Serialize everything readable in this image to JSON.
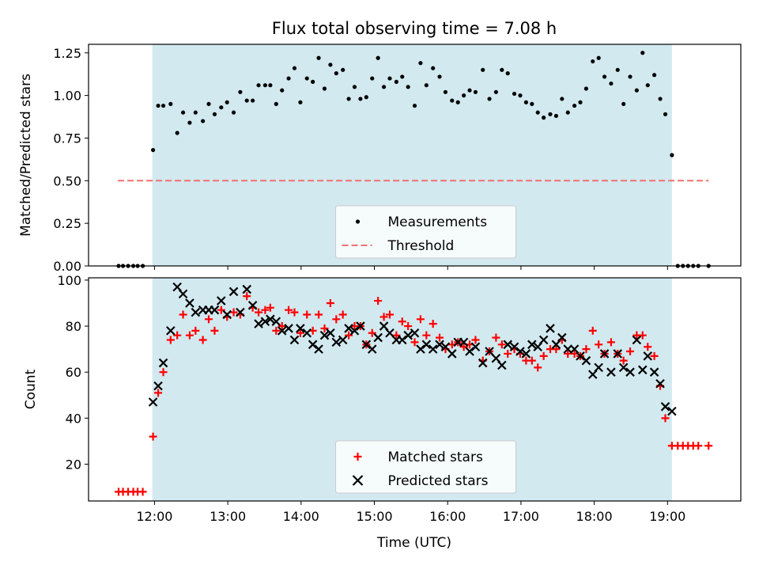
{
  "chart_data": {
    "title": "Flux total observing time = 7.08 h",
    "xlabel": "Time (UTC)",
    "x_ticks": [
      "12:00",
      "13:00",
      "14:00",
      "15:00",
      "16:00",
      "17:00",
      "18:00",
      "19:00"
    ],
    "x_ticks_hours": [
      12,
      13,
      14,
      15,
      16,
      17,
      18,
      19
    ],
    "xlim_hours": [
      11.1,
      20.0
    ],
    "observing_window_hours": [
      11.97,
      19.06
    ],
    "colors": {
      "window": "#d2e9f0",
      "threshold": "#f07070",
      "matched": "#ff0000",
      "predicted": "#000000",
      "measurement": "#000000"
    },
    "charts": [
      {
        "type": "scatter",
        "ylabel": "Matched/Predicted stars",
        "ylim": [
          0,
          1.3
        ],
        "y_ticks": [
          "0.00",
          "0.25",
          "0.50",
          "0.75",
          "1.00",
          "1.25"
        ],
        "y_tick_values": [
          0,
          0.25,
          0.5,
          0.75,
          1.0,
          1.25
        ],
        "legend_position": "bottom-center",
        "threshold": 0.5,
        "threshold_x_range_hours": [
          11.5,
          19.56
        ],
        "series": [
          {
            "name": "Measurements",
            "marker": "dot",
            "x": [
              11.51,
              11.57,
              11.64,
              11.71,
              11.77,
              11.84,
              11.98,
              12.05,
              12.12,
              12.22,
              12.31,
              12.39,
              12.48,
              12.56,
              12.66,
              12.74,
              12.82,
              12.91,
              12.99,
              13.08,
              13.17,
              13.26,
              13.34,
              13.42,
              13.51,
              13.58,
              13.66,
              13.74,
              13.83,
              13.91,
              13.99,
              14.08,
              14.16,
              14.24,
              14.32,
              14.4,
              14.48,
              14.57,
              14.65,
              14.73,
              14.81,
              14.89,
              14.97,
              15.05,
              15.13,
              15.21,
              15.3,
              15.38,
              15.46,
              15.55,
              15.63,
              15.71,
              15.8,
              15.89,
              15.97,
              16.06,
              16.14,
              16.22,
              16.3,
              16.38,
              16.48,
              16.57,
              16.66,
              16.74,
              16.82,
              16.91,
              16.99,
              17.07,
              17.15,
              17.23,
              17.31,
              17.4,
              17.48,
              17.56,
              17.64,
              17.73,
              17.81,
              17.89,
              17.98,
              18.06,
              18.14,
              18.23,
              18.32,
              18.4,
              18.49,
              18.58,
              18.66,
              18.73,
              18.82,
              18.9,
              18.97,
              19.06,
              19.14,
              19.21,
              19.28,
              19.35,
              19.42,
              19.56
            ],
            "y": [
              0,
              0,
              0,
              0,
              0,
              0,
              0.68,
              0.94,
              0.94,
              0.95,
              0.78,
              0.9,
              0.84,
              0.9,
              0.85,
              0.95,
              0.89,
              0.93,
              0.96,
              0.9,
              1.02,
              0.97,
              0.97,
              1.06,
              1.06,
              1.06,
              0.95,
              1.03,
              1.1,
              1.16,
              0.96,
              1.1,
              1.08,
              1.22,
              1.04,
              1.18,
              1.13,
              1.15,
              0.98,
              1.05,
              0.98,
              0.99,
              1.1,
              1.22,
              1.05,
              1.1,
              1.08,
              1.11,
              1.05,
              0.94,
              1.19,
              1.06,
              1.16,
              1.11,
              1.02,
              0.97,
              0.96,
              1.0,
              1.03,
              1.02,
              1.15,
              0.98,
              1.02,
              1.15,
              1.13,
              1.01,
              1.0,
              0.96,
              0.95,
              0.9,
              0.87,
              0.89,
              0.88,
              0.98,
              0.9,
              0.94,
              0.96,
              1.04,
              1.2,
              1.22,
              1.11,
              1.07,
              1.15,
              0.95,
              1.11,
              1.03,
              1.25,
              1.06,
              1.12,
              0.98,
              0.89,
              0.65,
              0,
              0,
              0,
              0,
              0,
              0
            ]
          },
          {
            "name": "Threshold",
            "marker": "dashed-line"
          }
        ]
      },
      {
        "type": "scatter",
        "ylabel": "Count",
        "ylim": [
          4,
          101
        ],
        "y_ticks": [
          "20",
          "40",
          "60",
          "80",
          "100"
        ],
        "y_tick_values": [
          20,
          40,
          60,
          80,
          100
        ],
        "legend_position": "bottom-center",
        "series": [
          {
            "name": "Matched stars",
            "marker": "plus",
            "x": [
              11.51,
              11.57,
              11.64,
              11.71,
              11.77,
              11.84,
              11.98,
              12.05,
              12.12,
              12.22,
              12.31,
              12.39,
              12.48,
              12.56,
              12.66,
              12.74,
              12.82,
              12.91,
              12.99,
              13.08,
              13.17,
              13.26,
              13.34,
              13.42,
              13.51,
              13.58,
              13.66,
              13.74,
              13.83,
              13.91,
              13.99,
              14.08,
              14.16,
              14.24,
              14.32,
              14.4,
              14.48,
              14.57,
              14.65,
              14.73,
              14.81,
              14.89,
              14.97,
              15.05,
              15.13,
              15.21,
              15.3,
              15.38,
              15.46,
              15.55,
              15.63,
              15.71,
              15.8,
              15.89,
              15.97,
              16.06,
              16.14,
              16.22,
              16.3,
              16.38,
              16.48,
              16.57,
              16.66,
              16.74,
              16.82,
              16.91,
              16.99,
              17.07,
              17.15,
              17.23,
              17.31,
              17.4,
              17.48,
              17.56,
              17.64,
              17.73,
              17.81,
              17.89,
              17.98,
              18.06,
              18.14,
              18.23,
              18.32,
              18.4,
              18.49,
              18.58,
              18.66,
              18.73,
              18.82,
              18.9,
              18.97,
              19.06,
              19.14,
              19.21,
              19.28,
              19.35,
              19.42,
              19.56
            ],
            "y": [
              8,
              8,
              8,
              8,
              8,
              8,
              32,
              51,
              60,
              74,
              76,
              85,
              76,
              78,
              74,
              83,
              78,
              87,
              84,
              86,
              85,
              93,
              88,
              86,
              87,
              88,
              78,
              80,
              87,
              86,
              77,
              85,
              78,
              85,
              79,
              90,
              83,
              85,
              76,
              80,
              80,
              72,
              77,
              91,
              84,
              85,
              76,
              82,
              80,
              73,
              83,
              76,
              81,
              75,
              70,
              72,
              73,
              71,
              72,
              74,
              65,
              69,
              75,
              72,
              68,
              70,
              68,
              65,
              65,
              62,
              67,
              70,
              70,
              74,
              68,
              68,
              67,
              70,
              78,
              72,
              68,
              73,
              68,
              65,
              69,
              76,
              76,
              71,
              67,
              54,
              40,
              28,
              28,
              28,
              28,
              28,
              28,
              28
            ]
          },
          {
            "name": "Predicted stars",
            "marker": "x",
            "x": [
              11.98,
              12.05,
              12.12,
              12.22,
              12.31,
              12.39,
              12.48,
              12.56,
              12.66,
              12.74,
              12.82,
              12.91,
              12.99,
              13.08,
              13.17,
              13.26,
              13.34,
              13.42,
              13.51,
              13.58,
              13.66,
              13.74,
              13.83,
              13.91,
              13.99,
              14.08,
              14.16,
              14.24,
              14.32,
              14.4,
              14.48,
              14.57,
              14.65,
              14.73,
              14.81,
              14.89,
              14.97,
              15.05,
              15.13,
              15.21,
              15.3,
              15.38,
              15.46,
              15.55,
              15.63,
              15.71,
              15.8,
              15.89,
              15.97,
              16.06,
              16.14,
              16.22,
              16.3,
              16.38,
              16.48,
              16.57,
              16.66,
              16.74,
              16.82,
              16.91,
              16.99,
              17.07,
              17.15,
              17.23,
              17.31,
              17.4,
              17.48,
              17.56,
              17.64,
              17.73,
              17.81,
              17.89,
              17.98,
              18.06,
              18.14,
              18.23,
              18.32,
              18.4,
              18.49,
              18.58,
              18.66,
              18.73,
              18.82,
              18.9,
              18.97,
              19.06
            ],
            "y": [
              47,
              54,
              64,
              78,
              97,
              94,
              90,
              86,
              87,
              87,
              87,
              91,
              85,
              95,
              86,
              96,
              89,
              81,
              82,
              83,
              82,
              78,
              79,
              74,
              79,
              77,
              72,
              70,
              76,
              77,
              73,
              74,
              79,
              78,
              80,
              72,
              70,
              75,
              80,
              77,
              74,
              74,
              76,
              77,
              70,
              72,
              70,
              72,
              71,
              68,
              73,
              73,
              69,
              71,
              64,
              69,
              66,
              63,
              72,
              71,
              69,
              68,
              72,
              71,
              74,
              79,
              72,
              75,
              70,
              70,
              67,
              65,
              59,
              62,
              68,
              60,
              68,
              62,
              60,
              74,
              61,
              67,
              60,
              55,
              45,
              43
            ]
          }
        ]
      }
    ]
  }
}
